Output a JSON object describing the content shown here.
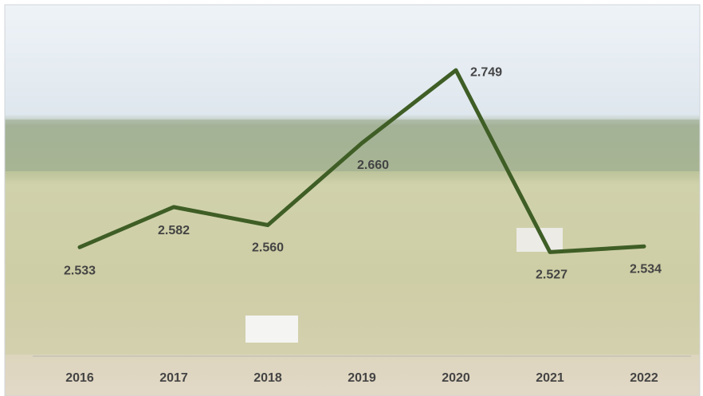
{
  "chart_data": {
    "type": "line",
    "categories": [
      "2016",
      "2017",
      "2018",
      "2019",
      "2020",
      "2021",
      "2022"
    ],
    "values": [
      2.533,
      2.582,
      2.56,
      2.66,
      2.749,
      2.527,
      2.534
    ],
    "value_labels": [
      "2.533",
      "2.582",
      "2.560",
      "2.660",
      "2.749",
      "2.527",
      "2.534"
    ],
    "color": "#3f5e26",
    "ylim": [
      2.4,
      2.825
    ]
  }
}
